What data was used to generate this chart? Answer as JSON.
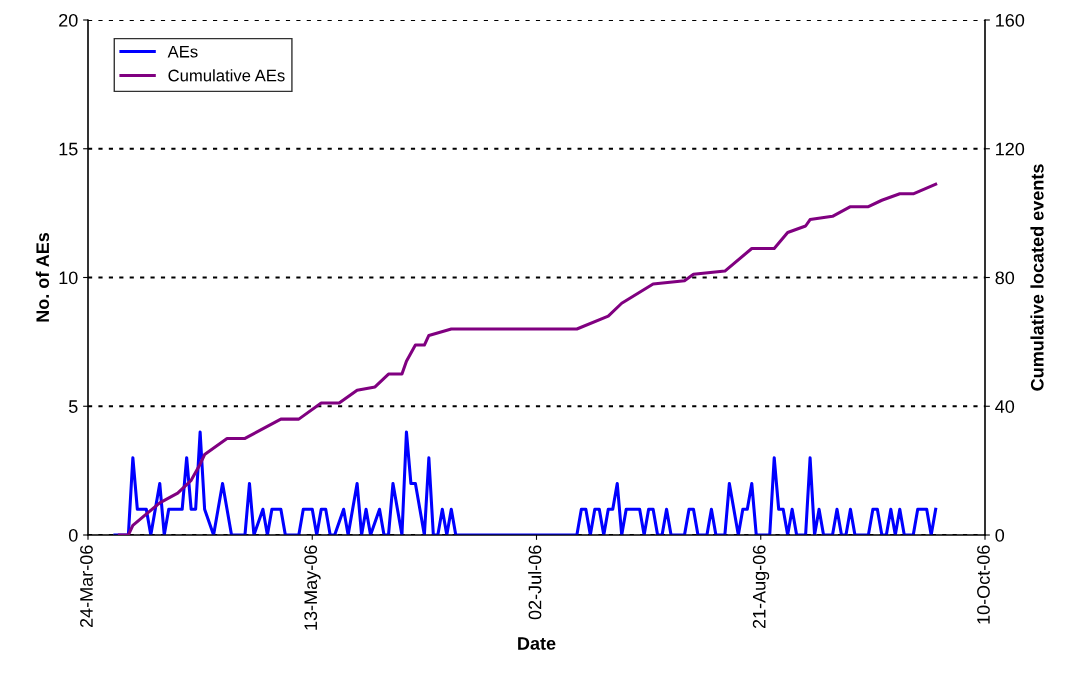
{
  "chart_data": {
    "type": "line",
    "xlabel": "Date",
    "ylabel": "No. of AEs",
    "y2label": "Cumulative located events",
    "xlim": [
      "2006-03-24",
      "2006-10-10"
    ],
    "xticks": [
      {
        "value": "2006-03-24",
        "label": "24-Mar-06"
      },
      {
        "value": "2006-05-13",
        "label": "13-May-06"
      },
      {
        "value": "2006-07-02",
        "label": "02-Jul-06"
      },
      {
        "value": "2006-08-21",
        "label": "21-Aug-06"
      },
      {
        "value": "2006-10-10",
        "label": "10-Oct-06"
      }
    ],
    "ylim": [
      0,
      20
    ],
    "yticks": [
      0,
      5,
      10,
      15,
      20
    ],
    "y2lim": [
      0,
      160
    ],
    "y2ticks": [
      0,
      40,
      80,
      120,
      160
    ],
    "grid": "y",
    "legend": "top left",
    "line_style": "solid",
    "marker": "none",
    "series": [
      {
        "name": "AEs",
        "color": "#0000ff",
        "x": [
          "2006-03-30",
          "2006-04-02",
          "2006-04-03",
          "2006-04-04",
          "2006-04-06",
          "2006-04-07",
          "2006-04-09",
          "2006-04-10",
          "2006-04-11",
          "2006-04-14",
          "2006-04-15",
          "2006-04-16",
          "2006-04-17",
          "2006-04-18",
          "2006-04-19",
          "2006-04-21",
          "2006-04-23",
          "2006-04-25",
          "2006-04-28",
          "2006-04-29",
          "2006-04-30",
          "2006-05-02",
          "2006-05-03",
          "2006-05-04",
          "2006-05-06",
          "2006-05-07",
          "2006-05-10",
          "2006-05-11",
          "2006-05-13",
          "2006-05-14",
          "2006-05-15",
          "2006-05-16",
          "2006-05-17",
          "2006-05-18",
          "2006-05-20",
          "2006-05-21",
          "2006-05-23",
          "2006-05-24",
          "2006-05-25",
          "2006-05-26",
          "2006-05-28",
          "2006-05-29",
          "2006-05-30",
          "2006-05-31",
          "2006-06-02",
          "2006-06-03",
          "2006-06-04",
          "2006-06-05",
          "2006-06-07",
          "2006-06-08",
          "2006-06-09",
          "2006-06-10",
          "2006-06-11",
          "2006-06-12",
          "2006-06-13",
          "2006-06-14",
          "2006-07-11",
          "2006-07-12",
          "2006-07-13",
          "2006-07-14",
          "2006-07-15",
          "2006-07-16",
          "2006-07-17",
          "2006-07-18",
          "2006-07-19",
          "2006-07-20",
          "2006-07-21",
          "2006-07-22",
          "2006-07-25",
          "2006-07-26",
          "2006-07-27",
          "2006-07-28",
          "2006-07-29",
          "2006-07-30",
          "2006-07-31",
          "2006-08-01",
          "2006-08-04",
          "2006-08-05",
          "2006-08-06",
          "2006-08-07",
          "2006-08-09",
          "2006-08-10",
          "2006-08-11",
          "2006-08-13",
          "2006-08-14",
          "2006-08-16",
          "2006-08-17",
          "2006-08-18",
          "2006-08-19",
          "2006-08-20",
          "2006-08-23",
          "2006-08-24",
          "2006-08-25",
          "2006-08-26",
          "2006-08-27",
          "2006-08-28",
          "2006-08-29",
          "2006-08-31",
          "2006-09-01",
          "2006-09-02",
          "2006-09-03",
          "2006-09-04",
          "2006-09-06",
          "2006-09-07",
          "2006-09-08",
          "2006-09-09",
          "2006-09-10",
          "2006-09-11",
          "2006-09-14",
          "2006-09-15",
          "2006-09-16",
          "2006-09-17",
          "2006-09-18",
          "2006-09-19",
          "2006-09-20",
          "2006-09-21",
          "2006-09-22",
          "2006-09-24",
          "2006-09-25",
          "2006-09-27",
          "2006-09-28",
          "2006-09-29"
        ],
        "values": [
          0,
          0,
          3,
          1,
          1,
          0,
          2,
          0,
          1,
          1,
          3,
          1,
          1,
          4,
          1,
          0,
          2,
          0,
          0,
          2,
          0,
          1,
          0,
          1,
          1,
          0,
          0,
          1,
          1,
          0,
          1,
          1,
          0,
          0,
          1,
          0,
          2,
          0,
          1,
          0,
          1,
          0,
          0,
          2,
          0,
          4,
          2,
          2,
          0,
          3,
          0,
          0,
          1,
          0,
          1,
          0,
          0,
          1,
          1,
          0,
          1,
          1,
          0,
          1,
          1,
          2,
          0,
          1,
          1,
          0,
          1,
          1,
          0,
          0,
          1,
          0,
          0,
          1,
          1,
          0,
          0,
          1,
          0,
          0,
          2,
          0,
          1,
          1,
          2,
          0,
          0,
          3,
          1,
          1,
          0,
          1,
          0,
          0,
          3,
          0,
          1,
          0,
          0,
          1,
          0,
          0,
          1,
          0,
          0,
          1,
          1,
          0,
          0,
          1,
          0,
          1,
          0,
          0,
          1,
          1,
          0,
          1
        ]
      },
      {
        "name": "Cumulative AEs",
        "color": "#800080",
        "axis": "y2",
        "x": [
          "2006-03-31",
          "2006-04-02",
          "2006-04-03",
          "2006-04-09",
          "2006-04-13",
          "2006-04-16",
          "2006-04-18",
          "2006-04-19",
          "2006-04-24",
          "2006-04-28",
          "2006-05-06",
          "2006-05-10",
          "2006-05-15",
          "2006-05-19",
          "2006-05-23",
          "2006-05-27",
          "2006-05-30",
          "2006-06-02",
          "2006-06-03",
          "2006-06-05",
          "2006-06-07",
          "2006-06-08",
          "2006-06-13",
          "2006-07-11",
          "2006-07-18",
          "2006-07-21",
          "2006-07-28",
          "2006-08-04",
          "2006-08-06",
          "2006-08-13",
          "2006-08-19",
          "2006-08-24",
          "2006-08-27",
          "2006-08-31",
          "2006-09-01",
          "2006-09-06",
          "2006-09-10",
          "2006-09-14",
          "2006-09-17",
          "2006-09-21",
          "2006-09-24",
          "2006-09-29"
        ],
        "values": [
          0,
          0,
          3,
          10,
          13,
          17,
          22,
          25,
          30,
          30,
          36,
          36,
          41,
          41,
          45,
          46,
          50,
          50,
          54,
          59,
          59,
          62,
          64,
          64,
          68,
          72,
          78,
          79,
          81,
          82,
          89,
          89,
          94,
          96,
          98,
          99,
          102,
          102,
          104,
          106,
          106,
          109
        ]
      }
    ]
  }
}
